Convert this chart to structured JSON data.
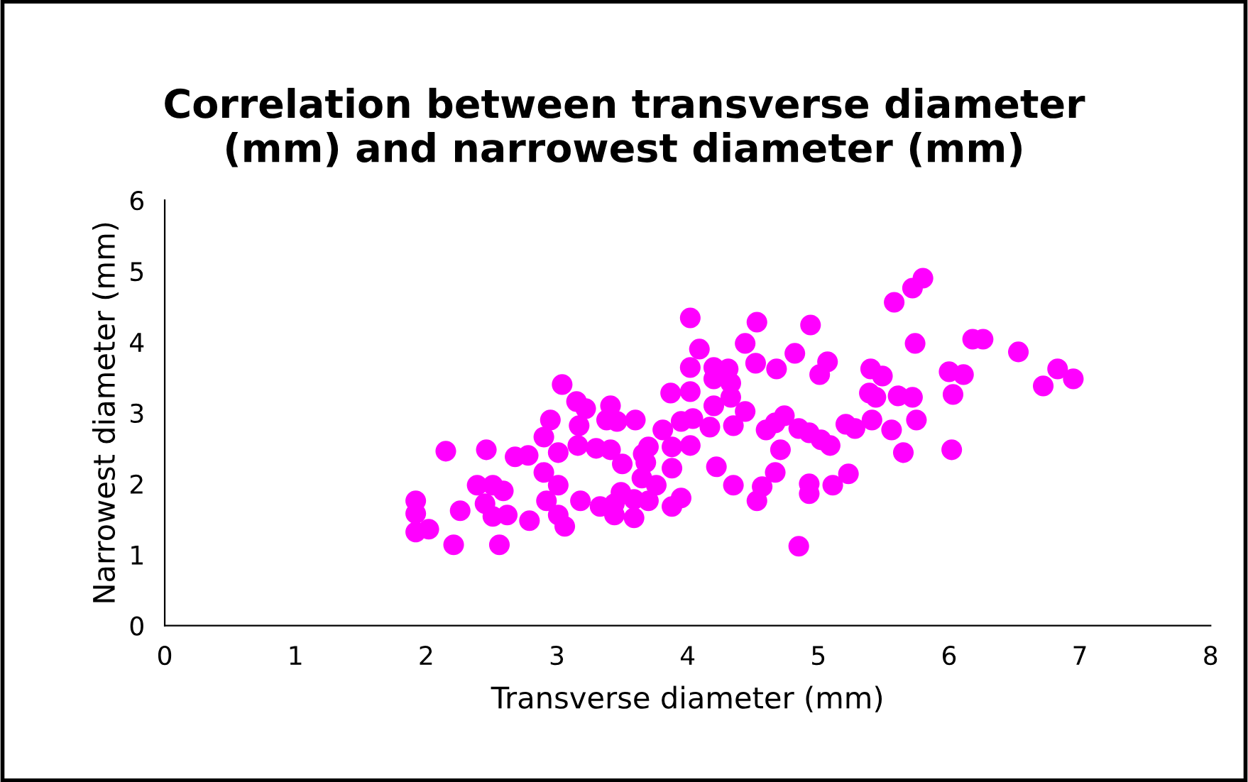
{
  "chart_data": {
    "type": "scatter",
    "title": "Correlation between transverse diameter\n(mm) and narrowest diameter (mm)",
    "xlabel": "Transverse diameter (mm)",
    "ylabel": "Narrowest diameter (mm)",
    "xlim": [
      0,
      8
    ],
    "xticks": [
      0,
      1,
      2,
      3,
      4,
      5,
      6,
      7,
      8
    ],
    "ylim": [
      0,
      6
    ],
    "yticks": [
      0,
      1,
      2,
      3,
      4,
      5,
      6
    ],
    "grid": false,
    "legend": false,
    "marker": "circle",
    "series": [
      {
        "color": "#ff00ff",
        "x": [
          1.92,
          1.92,
          1.92,
          2.02,
          2.21,
          2.26,
          2.15,
          2.46,
          2.56,
          2.39,
          2.51,
          2.59,
          2.45,
          2.51,
          2.62,
          2.79,
          2.68,
          2.78,
          2.9,
          2.95,
          3.04,
          3.15,
          3.22,
          3.17,
          3.01,
          3.16,
          3.3,
          3.41,
          3.5,
          3.38,
          3.41,
          3.46,
          3.6,
          2.9,
          3.01,
          2.92,
          3.01,
          3.06,
          3.18,
          3.33,
          3.44,
          3.44,
          3.59,
          3.7,
          3.76,
          3.65,
          3.68,
          3.7,
          3.81,
          3.87,
          3.66,
          3.49,
          3.59,
          3.88,
          4.02,
          3.95,
          4.04,
          3.88,
          3.95,
          3.88,
          4.02,
          4.09,
          4.02,
          4.02,
          4.2,
          4.31,
          4.2,
          4.33,
          4.2,
          4.33,
          4.44,
          4.35,
          4.17,
          4.22,
          4.35,
          4.57,
          4.53,
          4.67,
          4.85,
          4.53,
          4.94,
          4.44,
          4.52,
          4.68,
          4.82,
          5.07,
          5.01,
          4.6,
          4.74,
          4.67,
          4.85,
          4.93,
          5.02,
          5.09,
          4.71,
          4.93,
          4.93,
          5.11,
          5.23,
          5.21,
          5.28,
          5.41,
          5.56,
          5.4,
          5.49,
          5.39,
          5.44,
          5.61,
          5.72,
          5.75,
          5.65,
          6.02,
          6.0,
          6.03,
          5.74,
          5.58,
          5.72,
          5.8,
          6.18,
          6.26,
          6.53,
          6.83,
          6.95,
          6.72,
          6.11
        ],
        "values": [
          1.76,
          1.58,
          1.32,
          1.36,
          1.14,
          1.62,
          2.46,
          2.48,
          1.14,
          1.98,
          1.98,
          1.9,
          1.72,
          1.54,
          1.56,
          1.48,
          2.38,
          2.4,
          2.66,
          2.9,
          3.4,
          3.16,
          3.06,
          2.82,
          2.44,
          2.54,
          2.5,
          2.48,
          2.28,
          2.9,
          3.1,
          2.88,
          2.9,
          2.16,
          1.98,
          1.76,
          1.56,
          1.4,
          1.76,
          1.68,
          1.72,
          1.56,
          1.52,
          1.76,
          1.98,
          2.08,
          2.3,
          2.52,
          2.76,
          3.28,
          2.42,
          1.88,
          1.78,
          2.52,
          2.54,
          2.88,
          2.92,
          2.22,
          1.8,
          1.68,
          4.34,
          3.9,
          3.64,
          3.3,
          3.64,
          3.62,
          3.48,
          3.42,
          3.1,
          3.22,
          3.02,
          2.82,
          2.8,
          2.24,
          1.98,
          1.96,
          1.76,
          2.16,
          1.12,
          4.28,
          4.24,
          3.98,
          3.7,
          3.62,
          3.84,
          3.72,
          3.54,
          2.76,
          2.96,
          2.86,
          2.78,
          2.72,
          2.62,
          2.54,
          2.48,
          2.0,
          1.86,
          1.98,
          2.14,
          2.84,
          2.78,
          2.9,
          2.76,
          3.62,
          3.52,
          3.28,
          3.22,
          3.24,
          3.22,
          2.9,
          2.44,
          2.48,
          3.58,
          3.26,
          3.98,
          4.56,
          4.76,
          4.9,
          4.04,
          4.04,
          3.86,
          3.62,
          3.48,
          3.38,
          3.54
        ]
      }
    ]
  }
}
